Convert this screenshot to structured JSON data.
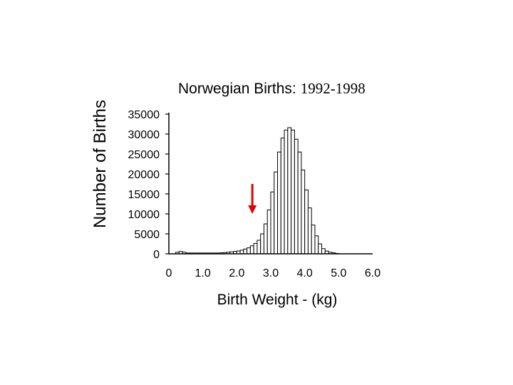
{
  "chart_data": {
    "type": "bar",
    "title_main": "Norwegian Births:",
    "title_years": "1992-1998",
    "xlabel": "Birth Weight - (kg)",
    "ylabel": "Number of Births",
    "xlim": [
      0,
      6.0
    ],
    "ylim": [
      0,
      35000
    ],
    "bin_width_kg": 0.1,
    "x_ticks": [
      {
        "value": 0,
        "label": "0"
      },
      {
        "value": 1.0,
        "label": "1.0"
      },
      {
        "value": 2.0,
        "label": "2.0"
      },
      {
        "value": 3.0,
        "label": "3.0"
      },
      {
        "value": 4.0,
        "label": "4.0"
      },
      {
        "value": 5.0,
        "label": "5.0"
      },
      {
        "value": 6.0,
        "label": "6.0"
      }
    ],
    "y_ticks": [
      {
        "value": 0,
        "label": "0"
      },
      {
        "value": 5000,
        "label": "5000"
      },
      {
        "value": 10000,
        "label": "10000"
      },
      {
        "value": 15000,
        "label": "15000"
      },
      {
        "value": 20000,
        "label": "20000"
      },
      {
        "value": 25000,
        "label": "25000"
      },
      {
        "value": 30000,
        "label": "30000"
      },
      {
        "value": 35000,
        "label": "35000"
      }
    ],
    "bins": [
      {
        "x": 0.2,
        "y": 400
      },
      {
        "x": 0.3,
        "y": 600
      },
      {
        "x": 0.4,
        "y": 400
      },
      {
        "x": 0.5,
        "y": 200
      },
      {
        "x": 0.6,
        "y": 200
      },
      {
        "x": 0.7,
        "y": 200
      },
      {
        "x": 0.8,
        "y": 200
      },
      {
        "x": 0.9,
        "y": 200
      },
      {
        "x": 1.0,
        "y": 200
      },
      {
        "x": 1.1,
        "y": 200
      },
      {
        "x": 1.2,
        "y": 200
      },
      {
        "x": 1.3,
        "y": 200
      },
      {
        "x": 1.4,
        "y": 200
      },
      {
        "x": 1.5,
        "y": 250
      },
      {
        "x": 1.6,
        "y": 300
      },
      {
        "x": 1.7,
        "y": 400
      },
      {
        "x": 1.8,
        "y": 500
      },
      {
        "x": 1.9,
        "y": 600
      },
      {
        "x": 2.0,
        "y": 700
      },
      {
        "x": 2.1,
        "y": 900
      },
      {
        "x": 2.2,
        "y": 1200
      },
      {
        "x": 2.3,
        "y": 1500
      },
      {
        "x": 2.4,
        "y": 2000
      },
      {
        "x": 2.5,
        "y": 2600
      },
      {
        "x": 2.6,
        "y": 3400
      },
      {
        "x": 2.7,
        "y": 5000
      },
      {
        "x": 2.8,
        "y": 7500
      },
      {
        "x": 2.9,
        "y": 11000
      },
      {
        "x": 3.0,
        "y": 15500
      },
      {
        "x": 3.1,
        "y": 20500
      },
      {
        "x": 3.2,
        "y": 25500
      },
      {
        "x": 3.3,
        "y": 29000
      },
      {
        "x": 3.4,
        "y": 31000
      },
      {
        "x": 3.5,
        "y": 31600
      },
      {
        "x": 3.6,
        "y": 31000
      },
      {
        "x": 3.7,
        "y": 28700
      },
      {
        "x": 3.8,
        "y": 25500
      },
      {
        "x": 3.9,
        "y": 21000
      },
      {
        "x": 4.0,
        "y": 16000
      },
      {
        "x": 4.1,
        "y": 11500
      },
      {
        "x": 4.2,
        "y": 7200
      },
      {
        "x": 4.3,
        "y": 4500
      },
      {
        "x": 4.4,
        "y": 2500
      },
      {
        "x": 4.5,
        "y": 1300
      },
      {
        "x": 4.6,
        "y": 700
      },
      {
        "x": 4.7,
        "y": 400
      },
      {
        "x": 4.8,
        "y": 250
      },
      {
        "x": 4.9,
        "y": 100
      }
    ],
    "annotations": [
      {
        "type": "arrow",
        "x": 2.5,
        "y_from": 17500,
        "y_to": 10000,
        "color": "#e00000"
      }
    ],
    "colors": {
      "bar_fill": "#ffffff",
      "bar_stroke": "#000000",
      "axis": "#000000",
      "arrow": "#e00000"
    }
  }
}
